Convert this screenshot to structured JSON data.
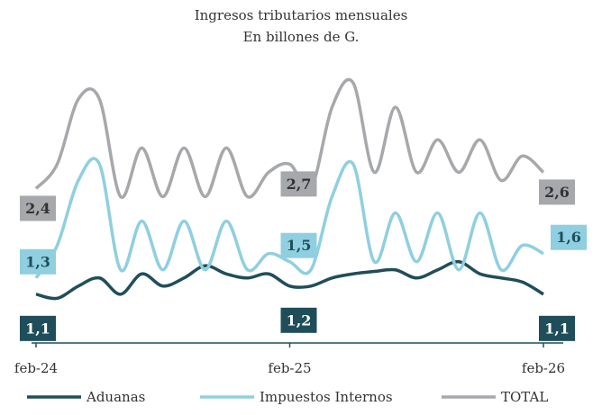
{
  "chart_data": {
    "type": "line",
    "title": "Ingresos tributarios mensuales",
    "subtitle": "En billones de G.",
    "categories": [
      "feb-24",
      null,
      null,
      null,
      null,
      null,
      null,
      null,
      null,
      null,
      null,
      null,
      "feb-25",
      null,
      null,
      null,
      null,
      null,
      null,
      null,
      null,
      null,
      null,
      null,
      "feb-26"
    ],
    "ylim": [
      0.5,
      4
    ],
    "series": [
      {
        "name": "Aduanas",
        "color": "#1f4e5a",
        "values": [
          1.1,
          1.05,
          1.2,
          1.3,
          1.1,
          1.35,
          1.2,
          1.3,
          1.45,
          1.35,
          1.3,
          1.35,
          1.2,
          1.2,
          1.3,
          1.35,
          1.38,
          1.4,
          1.3,
          1.4,
          1.5,
          1.35,
          1.3,
          1.25,
          1.1
        ],
        "value_labels": [
          "1,1",
          null,
          null,
          null,
          null,
          null,
          null,
          null,
          null,
          null,
          null,
          null,
          "1,2",
          null,
          null,
          null,
          null,
          null,
          null,
          null,
          null,
          null,
          null,
          null,
          "1,1"
        ]
      },
      {
        "name": "Impuestos Internos",
        "color": "#8fcfe0",
        "values": [
          1.3,
          1.7,
          2.5,
          2.7,
          1.4,
          2.0,
          1.4,
          2.0,
          1.4,
          2.0,
          1.4,
          1.6,
          1.5,
          1.4,
          2.3,
          2.7,
          1.5,
          2.1,
          1.5,
          2.1,
          1.4,
          2.1,
          1.4,
          1.7,
          1.6
        ],
        "value_labels": [
          "1,3",
          null,
          null,
          null,
          null,
          null,
          null,
          null,
          null,
          null,
          null,
          null,
          "1,5",
          null,
          null,
          null,
          null,
          null,
          null,
          null,
          null,
          null,
          null,
          null,
          "1,6"
        ]
      },
      {
        "name": "TOTAL",
        "color": "#a6a8ab",
        "values": [
          2.4,
          2.7,
          3.5,
          3.5,
          2.3,
          2.9,
          2.3,
          2.9,
          2.3,
          2.9,
          2.3,
          2.6,
          2.7,
          2.4,
          3.4,
          3.7,
          2.6,
          3.4,
          2.6,
          3.0,
          2.6,
          3.0,
          2.5,
          2.8,
          2.6
        ],
        "value_labels": [
          "2,4",
          null,
          null,
          null,
          null,
          null,
          null,
          null,
          null,
          null,
          null,
          null,
          "2,7",
          null,
          null,
          null,
          null,
          null,
          null,
          null,
          null,
          null,
          null,
          null,
          "2,6"
        ]
      }
    ]
  }
}
